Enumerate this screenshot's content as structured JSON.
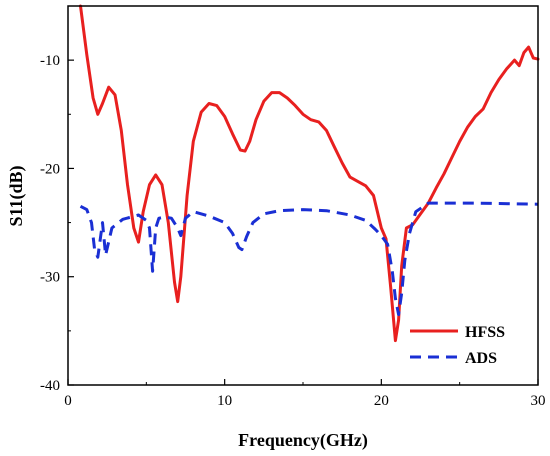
{
  "chart_data": {
    "type": "line",
    "title": "",
    "xlabel": "Frequency(GHz)",
    "ylabel": "S11(dB)",
    "xlim": [
      0,
      30
    ],
    "ylim": [
      -40,
      -5
    ],
    "xticks": [
      0,
      10,
      20,
      30
    ],
    "yticks": [
      -40,
      -30,
      -20,
      -10
    ],
    "grid": false,
    "legend_position": "bottom-right",
    "series": [
      {
        "name": "HFSS",
        "color": "#e8201f",
        "dash": "solid",
        "x": [
          0.8,
          1.2,
          1.6,
          1.9,
          2.2,
          2.6,
          3.0,
          3.4,
          3.8,
          4.2,
          4.5,
          4.8,
          5.2,
          5.6,
          6.0,
          6.4,
          6.8,
          7.0,
          7.2,
          7.6,
          8.0,
          8.5,
          9.0,
          9.5,
          10.0,
          10.5,
          11.0,
          11.3,
          11.6,
          12.0,
          12.5,
          13.0,
          13.5,
          14.0,
          14.5,
          15.0,
          15.5,
          16.0,
          16.5,
          17.0,
          17.5,
          18.0,
          18.5,
          19.0,
          19.5,
          20.0,
          20.3,
          20.6,
          20.9,
          21.1,
          21.3,
          21.6,
          22.0,
          22.5,
          23.0,
          23.5,
          24.0,
          24.5,
          25.0,
          25.5,
          26.0,
          26.5,
          27.0,
          27.5,
          28.0,
          28.5,
          28.8,
          29.1,
          29.4,
          29.7,
          30.0
        ],
        "y": [
          -5.0,
          -9.5,
          -13.5,
          -15.0,
          -14.0,
          -12.5,
          -13.2,
          -16.5,
          -21.5,
          -25.5,
          -26.8,
          -24.0,
          -21.5,
          -20.6,
          -21.5,
          -25.0,
          -30.5,
          -32.3,
          -30.0,
          -22.5,
          -17.5,
          -14.8,
          -14.0,
          -14.2,
          -15.2,
          -16.8,
          -18.3,
          -18.4,
          -17.5,
          -15.5,
          -13.8,
          -13.0,
          -13.0,
          -13.5,
          -14.2,
          -15.0,
          -15.5,
          -15.7,
          -16.5,
          -18.0,
          -19.5,
          -20.8,
          -21.2,
          -21.6,
          -22.5,
          -25.5,
          -26.5,
          -31.0,
          -35.9,
          -34.0,
          -29.0,
          -25.5,
          -25.2,
          -24.2,
          -23.2,
          -21.8,
          -20.5,
          -19.0,
          -17.5,
          -16.2,
          -15.2,
          -14.5,
          -13.0,
          -11.8,
          -10.8,
          -10.0,
          -10.5,
          -9.3,
          -8.8,
          -9.8,
          -9.9
        ]
      },
      {
        "name": "ADS",
        "color": "#1a2fd4",
        "dash": "dashed",
        "x": [
          0.8,
          1.2,
          1.5,
          1.7,
          1.9,
          2.0,
          2.2,
          2.4,
          2.8,
          3.5,
          4.5,
          5.0,
          5.2,
          5.4,
          5.6,
          5.8,
          6.2,
          6.6,
          7.0,
          7.2,
          7.5,
          8.0,
          9.0,
          10.0,
          10.5,
          10.9,
          11.1,
          11.4,
          11.8,
          12.5,
          13.5,
          15.0,
          16.5,
          18.0,
          19.0,
          19.6,
          20.0,
          20.4,
          20.7,
          20.9,
          21.1,
          21.3,
          21.5,
          21.8,
          22.2,
          23.0,
          26.0,
          30.0
        ],
        "y": [
          -23.5,
          -23.8,
          -25.0,
          -27.5,
          -28.2,
          -27.2,
          -25.0,
          -28.0,
          -25.5,
          -24.7,
          -24.3,
          -24.8,
          -25.5,
          -29.5,
          -25.5,
          -24.6,
          -24.5,
          -24.6,
          -25.5,
          -26.2,
          -24.6,
          -24.0,
          -24.4,
          -25.0,
          -26.0,
          -27.3,
          -27.5,
          -26.3,
          -25.0,
          -24.2,
          -23.9,
          -23.8,
          -23.9,
          -24.3,
          -24.8,
          -25.6,
          -26.2,
          -27.0,
          -29.5,
          -32.0,
          -33.5,
          -31.5,
          -28.5,
          -26.0,
          -24.0,
          -23.2,
          -23.2,
          -23.3
        ]
      }
    ]
  }
}
